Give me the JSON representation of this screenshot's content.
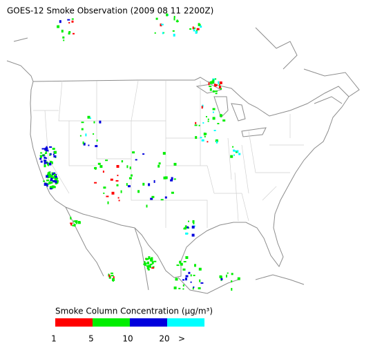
{
  "header": {
    "title": "GOES-12 Smoke Observation (2009 08 11  2200Z)"
  },
  "legend": {
    "title": "Smoke Column Concentration (μg/m³)",
    "colors": [
      "#ff0000",
      "#00ee00",
      "#0000dd",
      "#00ffff"
    ],
    "labels": [
      "1",
      "5",
      "10",
      "20",
      ">"
    ]
  }
}
